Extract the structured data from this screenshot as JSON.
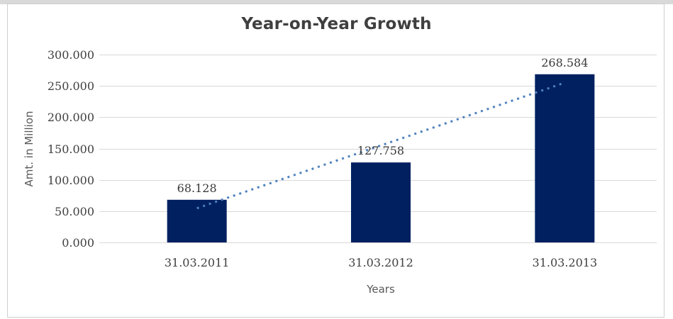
{
  "chart_data": {
    "type": "bar",
    "title": "Year-on-Year Growth",
    "xlabel": "Years",
    "ylabel": "Amt. in Million",
    "categories": [
      "31.03.2011",
      "31.03.2012",
      "31.03.2013"
    ],
    "values": [
      68.128,
      127.758,
      268.584
    ],
    "data_labels": [
      "68.128",
      "127.758",
      "268.584"
    ],
    "ylim": [
      0,
      300
    ],
    "ytick_step": 50,
    "ytick_labels": [
      "0.000",
      "50.000",
      "100.000",
      "150.000",
      "200.000",
      "250.000",
      "300.000"
    ],
    "grid": true,
    "legend": "none",
    "trendline": {
      "type": "linear",
      "style": "dotted"
    }
  },
  "colors": {
    "bar": "#002060",
    "trendline": "#4f81bd",
    "gridline": "#d9d9d9",
    "frame": "#cfcfcf",
    "title_text": "#3f3f3f",
    "axis_title_text": "#595959",
    "tick_text": "#404040",
    "background": "#ffffff"
  }
}
